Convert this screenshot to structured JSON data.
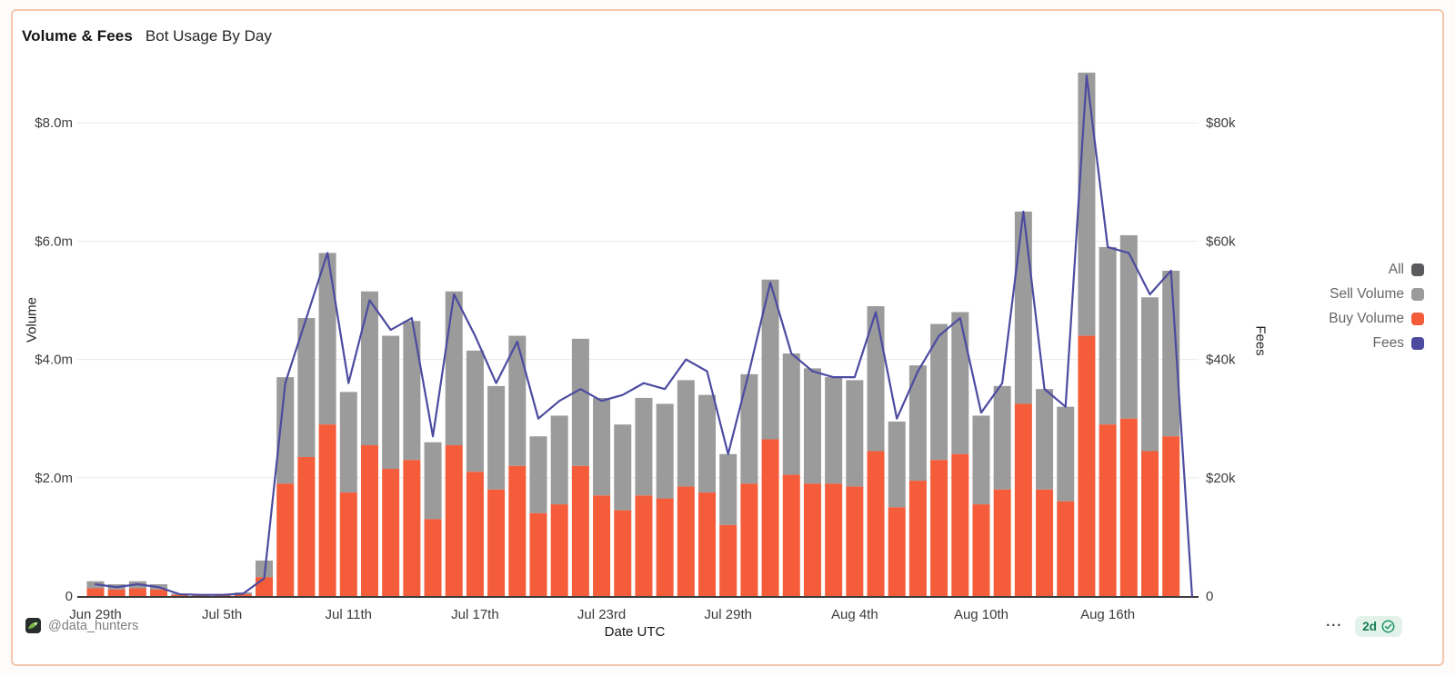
{
  "card": {
    "title": "Volume & Fees",
    "subtitle": "Bot Usage By Day"
  },
  "legend": {
    "items": [
      {
        "label": "All",
        "color": "#5b5b5e"
      },
      {
        "label": "Sell Volume",
        "color": "#9b9b9b"
      },
      {
        "label": "Buy Volume",
        "color": "#f45c3a"
      },
      {
        "label": "Fees",
        "color": "#4c4ba0"
      }
    ]
  },
  "footer": {
    "attribution": "@data_hunters",
    "avatar_icon": "data-hunters-logo",
    "menu_label": "···",
    "badge": {
      "text": "2d",
      "icon": "verified-check-seal",
      "bg": "#e3f2eb",
      "fg": "#137a55"
    }
  },
  "chart_data": {
    "type": "bar",
    "subtype": "stacked-bars-with-line-overlay",
    "title": "Volume & Fees — Bot Usage By Day",
    "xlabel": "Date UTC",
    "ylabel_left": "Volume",
    "ylabel_right": "Fees",
    "grid": true,
    "legend_position": "right",
    "ylim_left_millions": [
      0,
      8.9
    ],
    "ylim_right_thousands": [
      0,
      89
    ],
    "yticks_left": [
      {
        "label": "$8.0m",
        "value_m": 8
      },
      {
        "label": "$6.0m",
        "value_m": 6
      },
      {
        "label": "$4.0m",
        "value_m": 4
      },
      {
        "label": "$2.0m",
        "value_m": 2
      },
      {
        "label": "0",
        "value_m": 0
      }
    ],
    "yticks_right": [
      {
        "label": "$80k",
        "value_k": 80
      },
      {
        "label": "$60k",
        "value_k": 60
      },
      {
        "label": "$40k",
        "value_k": 40
      },
      {
        "label": "$20k",
        "value_k": 20
      },
      {
        "label": "0",
        "value_k": 0
      }
    ],
    "xticks": [
      {
        "label": "Jun 29th",
        "day_index": 0
      },
      {
        "label": "Jul 5th",
        "day_index": 6
      },
      {
        "label": "Jul 11th",
        "day_index": 12
      },
      {
        "label": "Jul 17th",
        "day_index": 18
      },
      {
        "label": "Jul 23rd",
        "day_index": 24
      },
      {
        "label": "Jul 29th",
        "day_index": 30
      },
      {
        "label": "Aug 4th",
        "day_index": 36
      },
      {
        "label": "Aug 10th",
        "day_index": 42
      },
      {
        "label": "Aug 16th",
        "day_index": 48
      }
    ],
    "x": [
      "Jun 29",
      "Jun 30",
      "Jul 1",
      "Jul 2",
      "Jul 3",
      "Jul 4",
      "Jul 5",
      "Jul 6",
      "Jul 7",
      "Jul 8",
      "Jul 9",
      "Jul 10",
      "Jul 11",
      "Jul 12",
      "Jul 13",
      "Jul 14",
      "Jul 15",
      "Jul 16",
      "Jul 17",
      "Jul 18",
      "Jul 19",
      "Jul 20",
      "Jul 21",
      "Jul 22",
      "Jul 23",
      "Jul 24",
      "Jul 25",
      "Jul 26",
      "Jul 27",
      "Jul 28",
      "Jul 29",
      "Jul 30",
      "Jul 31",
      "Aug 1",
      "Aug 2",
      "Aug 3",
      "Aug 4",
      "Aug 5",
      "Aug 6",
      "Aug 7",
      "Aug 8",
      "Aug 9",
      "Aug 10",
      "Aug 11",
      "Aug 12",
      "Aug 13",
      "Aug 14",
      "Aug 15",
      "Aug 16",
      "Aug 17",
      "Aug 18",
      "Aug 19",
      "Aug 20"
    ],
    "series": [
      {
        "name": "Buy Volume",
        "type": "bar",
        "stack": "volume",
        "axis": "left",
        "unit": "$m",
        "color": "#f45c3a",
        "values": [
          0.13,
          0.11,
          0.13,
          0.11,
          0.02,
          0.01,
          0.01,
          0.03,
          0.32,
          1.9,
          2.35,
          2.9,
          1.75,
          2.55,
          2.15,
          2.3,
          1.3,
          2.55,
          2.1,
          1.8,
          2.2,
          1.4,
          1.55,
          2.2,
          1.7,
          1.45,
          1.7,
          1.65,
          1.85,
          1.75,
          1.2,
          1.9,
          2.65,
          2.05,
          1.9,
          1.9,
          1.85,
          2.45,
          1.5,
          1.95,
          2.3,
          2.4,
          1.55,
          1.8,
          3.25,
          1.8,
          1.6,
          4.4,
          2.9,
          3.0,
          2.45,
          2.7,
          0
        ]
      },
      {
        "name": "Sell Volume",
        "type": "bar",
        "stack": "volume",
        "axis": "left",
        "unit": "$m",
        "color": "#9b9b9b",
        "values": [
          0.12,
          0.09,
          0.12,
          0.09,
          0.02,
          0.01,
          0.01,
          0.03,
          0.28,
          1.8,
          2.35,
          2.9,
          1.7,
          2.6,
          2.25,
          2.35,
          1.3,
          2.6,
          2.05,
          1.75,
          2.2,
          1.3,
          1.5,
          2.15,
          1.65,
          1.45,
          1.65,
          1.6,
          1.8,
          1.65,
          1.2,
          1.85,
          2.7,
          2.05,
          1.95,
          1.8,
          1.8,
          2.45,
          1.45,
          1.95,
          2.3,
          2.4,
          1.5,
          1.75,
          3.25,
          1.7,
          1.6,
          4.45,
          3.0,
          3.1,
          2.6,
          2.8,
          0
        ]
      },
      {
        "name": "All (total volume)",
        "type": "bar-total",
        "axis": "left",
        "unit": "$m",
        "color": "#5b5b5e",
        "values": [
          0.25,
          0.2,
          0.25,
          0.2,
          0.04,
          0.02,
          0.02,
          0.06,
          0.6,
          3.7,
          4.7,
          5.8,
          3.45,
          5.15,
          4.4,
          4.65,
          2.6,
          5.15,
          4.15,
          3.55,
          4.4,
          2.7,
          3.05,
          4.35,
          3.35,
          2.9,
          3.35,
          3.25,
          3.65,
          3.4,
          2.4,
          3.75,
          5.35,
          4.1,
          3.85,
          3.7,
          3.65,
          4.9,
          2.95,
          3.9,
          4.6,
          4.8,
          3.05,
          3.55,
          6.5,
          3.5,
          3.2,
          8.85,
          5.9,
          6.1,
          5.05,
          5.5,
          0
        ]
      },
      {
        "name": "Fees",
        "type": "line",
        "axis": "right",
        "unit": "$k",
        "color": "#4c4ba0",
        "values": [
          2,
          1.5,
          2,
          1.5,
          0.3,
          0.2,
          0.2,
          0.4,
          3,
          36,
          47,
          58,
          36,
          50,
          45,
          47,
          27,
          51,
          44,
          36,
          43,
          30,
          33,
          35,
          33,
          34,
          36,
          35,
          40,
          38,
          24,
          38,
          53,
          41,
          38,
          37,
          37,
          48,
          30,
          38,
          44,
          47,
          31,
          36,
          65,
          35,
          32,
          88,
          59,
          58,
          51,
          55,
          0
        ]
      }
    ]
  }
}
